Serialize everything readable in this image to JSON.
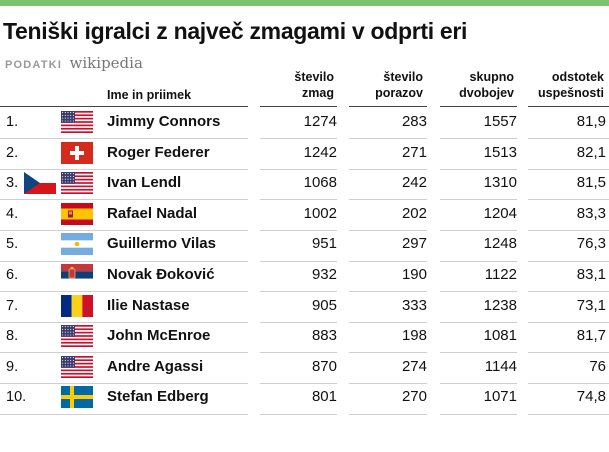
{
  "chart_data": {
    "type": "table",
    "title": "Teniški igralci z največ zmagami v odprti eri",
    "source_label": "PODATKI",
    "source": "wikipedia",
    "columns": [
      "Ime in priimek",
      "število zmag",
      "število porazov",
      "skupno dvobojev",
      "odstotek uspešnosti"
    ],
    "rows": [
      {
        "rank": "1.",
        "name": "Jimmy Connors",
        "flags": [
          "usa"
        ],
        "wins": "1274",
        "losses": "283",
        "total": "1557",
        "pct": "81,9"
      },
      {
        "rank": "2.",
        "name": "Roger Federer",
        "flags": [
          "switzerland"
        ],
        "wins": "1242",
        "losses": "271",
        "total": "1513",
        "pct": "82,1"
      },
      {
        "rank": "3.",
        "name": "Ivan Lendl",
        "flags": [
          "czech",
          "usa"
        ],
        "wins": "1068",
        "losses": "242",
        "total": "1310",
        "pct": "81,5"
      },
      {
        "rank": "4.",
        "name": "Rafael Nadal",
        "flags": [
          "spain"
        ],
        "wins": "1002",
        "losses": "202",
        "total": "1204",
        "pct": "83,3"
      },
      {
        "rank": "5.",
        "name": "Guillermo Vilas",
        "flags": [
          "argentina"
        ],
        "wins": "951",
        "losses": "297",
        "total": "1248",
        "pct": "76,3"
      },
      {
        "rank": "6.",
        "name": "Novak Đoković",
        "flags": [
          "serbia"
        ],
        "wins": "932",
        "losses": "190",
        "total": "1122",
        "pct": "83,1"
      },
      {
        "rank": "7.",
        "name": "Ilie Nastase",
        "flags": [
          "romania"
        ],
        "wins": "905",
        "losses": "333",
        "total": "1238",
        "pct": "73,1"
      },
      {
        "rank": "8.",
        "name": "John McEnroe",
        "flags": [
          "usa"
        ],
        "wins": "883",
        "losses": "198",
        "total": "1081",
        "pct": "81,7"
      },
      {
        "rank": "9.",
        "name": "Andre Agassi",
        "flags": [
          "usa"
        ],
        "wins": "870",
        "losses": "274",
        "total": "1144",
        "pct": "76"
      },
      {
        "rank": "10.",
        "name": "Stefan Edberg",
        "flags": [
          "sweden"
        ],
        "wins": "801",
        "losses": "270",
        "total": "1071",
        "pct": "74,8"
      }
    ]
  },
  "colors": {
    "accent_bar": "#7dc26f",
    "header_rule": "#444444",
    "row_rule": "#cfcfcf"
  }
}
